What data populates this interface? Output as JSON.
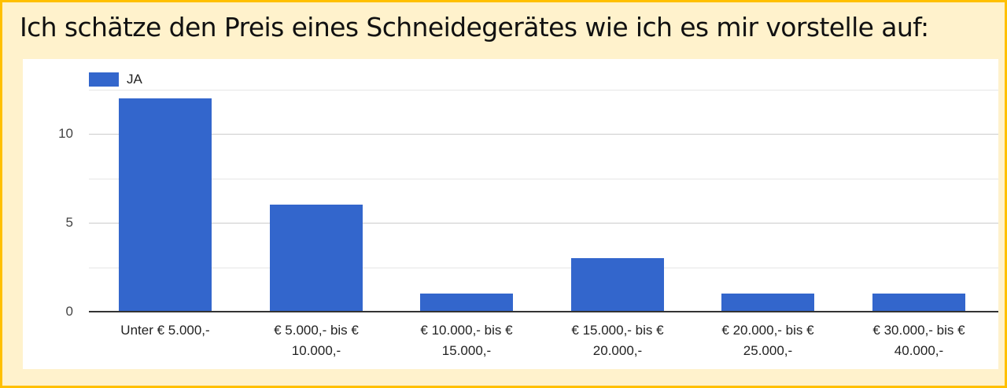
{
  "page": {
    "title": "Ich schätze den Preis eines Schneidegerätes wie ich es mir vorstelle auf:"
  },
  "colors": {
    "bar": "#3366CC",
    "frame_border": "#FFC000",
    "frame_fill": "#FFF2CC"
  },
  "legend": {
    "label": "JA"
  },
  "y_ticks": [
    "0",
    "5",
    "10"
  ],
  "chart_data": {
    "type": "bar",
    "title": "Ich schätze den Preis eines Schneidegerätes wie ich es mir vorstelle auf:",
    "categories": [
      "Unter € 5.000,-",
      "€ 5.000,- bis € 10.000,-",
      "€ 10.000,- bis € 15.000,-",
      "€ 15.000,- bis € 20.000,-",
      "€ 20.000,- bis € 25.000,-",
      "€ 30.000,- bis € 40.000,-"
    ],
    "series": [
      {
        "name": "JA",
        "values": [
          12,
          6,
          1,
          3,
          1,
          1
        ]
      }
    ],
    "xlabel": "",
    "ylabel": "",
    "ylim": [
      0,
      12.5
    ],
    "yticks": [
      0,
      5,
      10
    ],
    "grid": true,
    "legend_position": "top-left"
  },
  "x_labels": [
    {
      "line1": "Unter € 5.000,-",
      "line2": ""
    },
    {
      "line1": "€ 5.000,- bis €",
      "line2": "10.000,-"
    },
    {
      "line1": "€ 10.000,- bis €",
      "line2": "15.000,-"
    },
    {
      "line1": "€ 15.000,- bis €",
      "line2": "20.000,-"
    },
    {
      "line1": "€ 20.000,- bis €",
      "line2": "25.000,-"
    },
    {
      "line1": "€ 30.000,- bis €",
      "line2": "40.000,-"
    }
  ]
}
